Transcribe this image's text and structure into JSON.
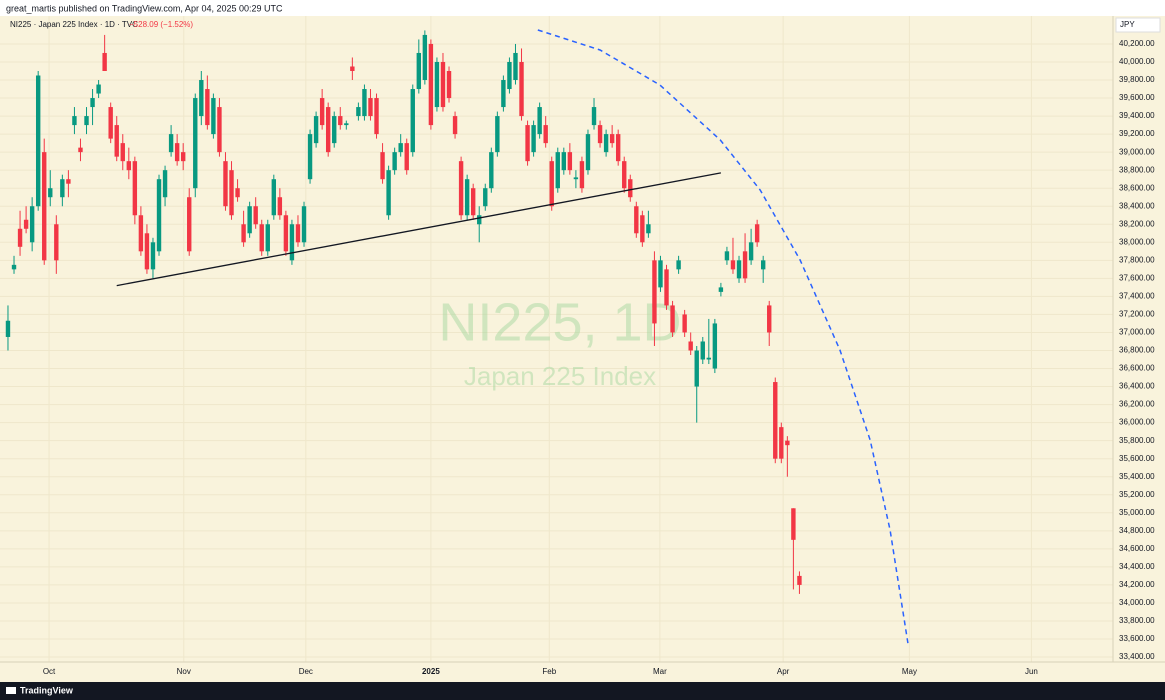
{
  "published": "great_martis published on TradingView.com, Apr 04, 2025 00:29 UTC",
  "brand": "TradingView",
  "chart_data": {
    "type": "candlestick",
    "title": "NI225 · Japan 225 Index · 1D · TVC",
    "change": "−528.09 (−1.52%)",
    "watermark": "NI225, 1D",
    "watermark_subtitle": "Japan 225 Index",
    "currency": "JPY",
    "up_color": "#089981",
    "down_color": "#f23645",
    "grid": true,
    "xlim": [
      -1.32,
      182.9
    ],
    "xticks": [
      {
        "value": 6.8,
        "label": "Oct"
      },
      {
        "value": 29.1,
        "label": "Nov"
      },
      {
        "value": 49.3,
        "label": "Dec"
      },
      {
        "value": 70.0,
        "label": "2025"
      },
      {
        "value": 89.6,
        "label": "Feb"
      },
      {
        "value": 107.9,
        "label": "Mar"
      },
      {
        "value": 128.3,
        "label": "Apr"
      },
      {
        "value": 149.2,
        "label": "May"
      },
      {
        "value": 169.4,
        "label": "Jun"
      }
    ],
    "ylim": [
      33345,
      40510
    ],
    "yticks": [
      {
        "value": 33400,
        "label": "33,400.00"
      },
      {
        "value": 33600,
        "label": "33,600.00"
      },
      {
        "value": 33800,
        "label": "33,800.00"
      },
      {
        "value": 34000,
        "label": "34,000.00"
      },
      {
        "value": 34200,
        "label": "34,200.00"
      },
      {
        "value": 34400,
        "label": "34,400.00"
      },
      {
        "value": 34600,
        "label": "34,600.00"
      },
      {
        "value": 34800,
        "label": "34,800.00"
      },
      {
        "value": 35000,
        "label": "35,000.00"
      },
      {
        "value": 35200,
        "label": "35,200.00"
      },
      {
        "value": 35400,
        "label": "35,400.00"
      },
      {
        "value": 35600,
        "label": "35,600.00"
      },
      {
        "value": 35800,
        "label": "35,800.00"
      },
      {
        "value": 36000,
        "label": "36,000.00"
      },
      {
        "value": 36200,
        "label": "36,200.00"
      },
      {
        "value": 36400,
        "label": "36,400.00"
      },
      {
        "value": 36600,
        "label": "36,600.00"
      },
      {
        "value": 36800,
        "label": "36,800.00"
      },
      {
        "value": 37000,
        "label": "37,000.00"
      },
      {
        "value": 37200,
        "label": "37,200.00"
      },
      {
        "value": 37400,
        "label": "37,400.00"
      },
      {
        "value": 37600,
        "label": "37,600.00"
      },
      {
        "value": 37800,
        "label": "37,800.00"
      },
      {
        "value": 38000,
        "label": "38,000.00"
      },
      {
        "value": 38200,
        "label": "38,200.00"
      },
      {
        "value": 38400,
        "label": "38,400.00"
      },
      {
        "value": 38600,
        "label": "38,600.00"
      },
      {
        "value": 38800,
        "label": "38,800.00"
      },
      {
        "value": 39000,
        "label": "39,000.00"
      },
      {
        "value": 39200,
        "label": "39,200.00"
      },
      {
        "value": 39400,
        "label": "39,400.00"
      },
      {
        "value": 39600,
        "label": "39,600.00"
      },
      {
        "value": 39800,
        "label": "39,800.00"
      },
      {
        "value": 40000,
        "label": "40,000.00"
      },
      {
        "value": 40200,
        "label": "40,200.00"
      }
    ],
    "ohlc": [
      [
        36950,
        37300,
        36800,
        37130
      ],
      [
        37700,
        37850,
        37650,
        37750
      ],
      [
        38150,
        38350,
        37850,
        37950
      ],
      [
        38250,
        38400,
        38100,
        38150
      ],
      [
        38000,
        38500,
        37900,
        38400
      ],
      [
        38400,
        39900,
        38350,
        39850
      ],
      [
        39000,
        39150,
        37750,
        37800
      ],
      [
        38500,
        38800,
        38400,
        38600
      ],
      [
        38200,
        38300,
        37650,
        37800
      ],
      [
        38500,
        38750,
        38400,
        38700
      ],
      [
        38700,
        38800,
        38500,
        38650
      ],
      [
        39300,
        39500,
        39200,
        39400
      ],
      [
        39050,
        39150,
        38900,
        39000
      ],
      [
        39300,
        39500,
        39200,
        39400
      ],
      [
        39500,
        39700,
        39300,
        39600
      ],
      [
        39650,
        39800,
        39600,
        39750
      ],
      [
        40100,
        40300,
        39900,
        39900
      ],
      [
        39500,
        39550,
        39100,
        39150
      ],
      [
        39300,
        39400,
        38900,
        38950
      ],
      [
        39100,
        39200,
        38800,
        38900
      ],
      [
        38900,
        39050,
        38700,
        38800
      ],
      [
        38900,
        38950,
        38200,
        38300
      ],
      [
        38300,
        38400,
        37850,
        37900
      ],
      [
        38100,
        38200,
        37650,
        37700
      ],
      [
        37700,
        38050,
        37600,
        38000
      ],
      [
        37900,
        38750,
        37850,
        38700
      ],
      [
        38500,
        38850,
        38400,
        38800
      ],
      [
        39000,
        39300,
        38950,
        39200
      ],
      [
        39100,
        39200,
        38850,
        38900
      ],
      [
        39000,
        39100,
        38800,
        38900
      ],
      [
        38500,
        38600,
        37850,
        37900
      ],
      [
        38600,
        39650,
        38500,
        39600
      ],
      [
        39400,
        39900,
        39300,
        39800
      ],
      [
        39700,
        39850,
        39250,
        39300
      ],
      [
        39200,
        39650,
        39150,
        39600
      ],
      [
        39500,
        39600,
        38950,
        39000
      ],
      [
        38900,
        39000,
        38350,
        38400
      ],
      [
        38800,
        38900,
        38250,
        38300
      ],
      [
        38600,
        38700,
        38450,
        38500
      ],
      [
        38200,
        38350,
        37950,
        38000
      ],
      [
        38100,
        38450,
        38050,
        38400
      ],
      [
        38400,
        38500,
        38150,
        38200
      ],
      [
        38200,
        38250,
        37850,
        37900
      ],
      [
        37900,
        38250,
        37850,
        38200
      ],
      [
        38300,
        38750,
        38250,
        38700
      ],
      [
        38500,
        38600,
        38250,
        38300
      ],
      [
        38300,
        38350,
        37850,
        37900
      ],
      [
        37800,
        38250,
        37750,
        38200
      ],
      [
        38200,
        38300,
        37950,
        38000
      ],
      [
        38000,
        38450,
        37950,
        38400
      ],
      [
        38700,
        39250,
        38650,
        39200
      ],
      [
        39100,
        39450,
        39050,
        39400
      ],
      [
        39600,
        39700,
        39250,
        39300
      ],
      [
        39500,
        39550,
        38950,
        39000
      ],
      [
        39100,
        39450,
        39050,
        39400
      ],
      [
        39400,
        39500,
        39250,
        39300
      ],
      [
        39300,
        39350,
        39250,
        39320
      ],
      [
        39950,
        40050,
        39800,
        39900
      ],
      [
        39400,
        39550,
        39350,
        39500
      ],
      [
        39400,
        39750,
        39350,
        39700
      ],
      [
        39600,
        39700,
        39350,
        39400
      ],
      [
        39600,
        39650,
        39150,
        39200
      ],
      [
        39000,
        39100,
        38650,
        38700
      ],
      [
        38300,
        38850,
        38250,
        38800
      ],
      [
        38800,
        39050,
        38750,
        39000
      ],
      [
        39000,
        39200,
        38950,
        39100
      ],
      [
        39100,
        39150,
        38750,
        38800
      ],
      [
        39000,
        39750,
        38950,
        39700
      ],
      [
        39700,
        40250,
        39650,
        40100
      ],
      [
        39800,
        40350,
        39750,
        40300
      ],
      [
        40200,
        40250,
        39250,
        39300
      ],
      [
        39500,
        40050,
        39450,
        40000
      ],
      [
        40000,
        40100,
        39450,
        39500
      ],
      [
        39900,
        39950,
        39550,
        39600
      ],
      [
        39400,
        39450,
        39150,
        39200
      ],
      [
        38900,
        38950,
        38250,
        38300
      ],
      [
        38300,
        38750,
        38250,
        38700
      ],
      [
        38600,
        38650,
        38250,
        38300
      ],
      [
        38200,
        38400,
        38000,
        38300
      ],
      [
        38400,
        38650,
        38350,
        38600
      ],
      [
        38600,
        39050,
        38550,
        39000
      ],
      [
        39000,
        39450,
        38950,
        39400
      ],
      [
        39500,
        39850,
        39450,
        39800
      ],
      [
        39700,
        40050,
        39650,
        40000
      ],
      [
        39800,
        40200,
        39750,
        40100
      ],
      [
        40000,
        40150,
        39350,
        39400
      ],
      [
        39300,
        39350,
        38850,
        38900
      ],
      [
        39000,
        39350,
        38950,
        39300
      ],
      [
        39200,
        39550,
        39150,
        39500
      ],
      [
        39300,
        39400,
        39050,
        39100
      ],
      [
        38900,
        38950,
        38350,
        38400
      ],
      [
        38600,
        39050,
        38550,
        39000
      ],
      [
        38800,
        39050,
        38750,
        39000
      ],
      [
        39000,
        39100,
        38750,
        38800
      ],
      [
        38700,
        38800,
        38600,
        38720
      ],
      [
        38900,
        38950,
        38550,
        38600
      ],
      [
        38800,
        39250,
        38750,
        39200
      ],
      [
        39300,
        39600,
        39250,
        39500
      ],
      [
        39300,
        39350,
        39050,
        39100
      ],
      [
        39000,
        39250,
        38950,
        39200
      ],
      [
        39200,
        39300,
        39050,
        39100
      ],
      [
        39200,
        39250,
        38850,
        38900
      ],
      [
        38900,
        38950,
        38550,
        38600
      ],
      [
        38700,
        38750,
        38450,
        38500
      ],
      [
        38400,
        38450,
        38050,
        38100
      ],
      [
        38300,
        38350,
        37950,
        38000
      ],
      [
        38100,
        38350,
        38050,
        38200
      ],
      [
        37800,
        37900,
        36850,
        37100
      ],
      [
        37500,
        37850,
        37450,
        37800
      ],
      [
        37700,
        37750,
        37250,
        37300
      ],
      [
        37300,
        37350,
        36950,
        37000
      ],
      [
        37700,
        37850,
        37650,
        37800
      ],
      [
        37200,
        37250,
        36950,
        37000
      ],
      [
        36900,
        37000,
        36750,
        36800
      ],
      [
        36400,
        36850,
        36000,
        36800
      ],
      [
        36700,
        36950,
        36650,
        36900
      ],
      [
        36700,
        37150,
        36650,
        36720
      ],
      [
        36600,
        37150,
        36550,
        37100
      ],
      [
        37450,
        37550,
        37400,
        37500
      ],
      [
        37800,
        37950,
        37750,
        37900
      ],
      [
        37800,
        38050,
        37650,
        37700
      ],
      [
        37600,
        37850,
        37550,
        37800
      ],
      [
        37900,
        38100,
        37550,
        37600
      ],
      [
        37800,
        38150,
        37750,
        38000
      ],
      [
        38200,
        38250,
        37950,
        38000
      ],
      [
        37700,
        37850,
        37550,
        37800
      ],
      [
        37300,
        37350,
        36850,
        37000
      ],
      [
        36450,
        36500,
        35550,
        35600
      ],
      [
        35950,
        36000,
        35550,
        35600
      ],
      [
        35800,
        35850,
        35400,
        35750
      ],
      [
        35050,
        35050,
        34150,
        34700
      ],
      [
        34300,
        34350,
        34100,
        34200
      ]
    ],
    "trendline": {
      "x": [
        18,
        118
      ],
      "y": [
        37520,
        38770
      ],
      "color": "#131722"
    },
    "arc": {
      "x": [
        87.7,
        98.0,
        107.9,
        117.9,
        124.5,
        131.1,
        137.7,
        142.7,
        146.0,
        149.0
      ],
      "y": [
        40355,
        40133,
        39745,
        39135,
        38580,
        37805,
        36806,
        35808,
        34810,
        33535
      ],
      "color": "#2962ff"
    }
  }
}
